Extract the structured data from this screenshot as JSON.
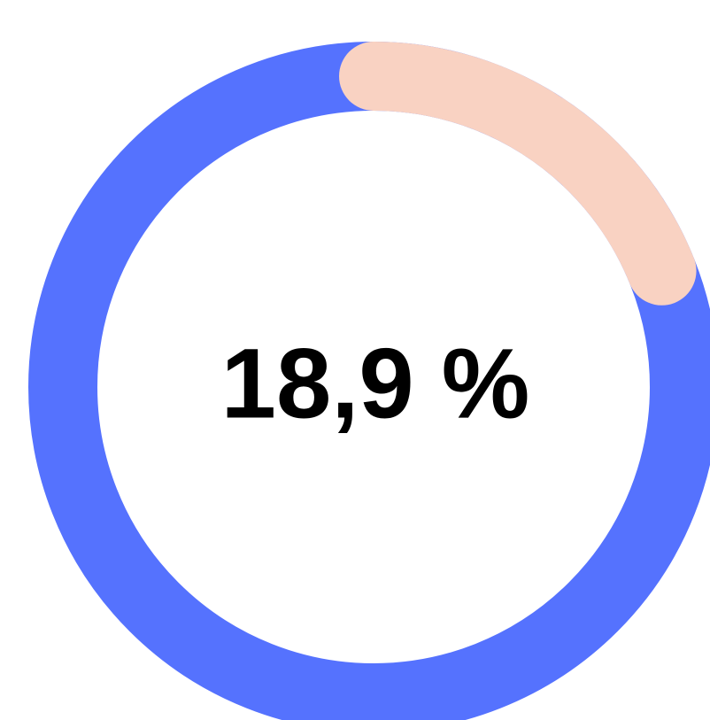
{
  "chart_data": {
    "type": "progress-ring",
    "values": [
      18.9
    ],
    "value_labels": [
      "18,9 %"
    ],
    "color": "#f9d2c2",
    "track_color": "#5572fe"
  }
}
